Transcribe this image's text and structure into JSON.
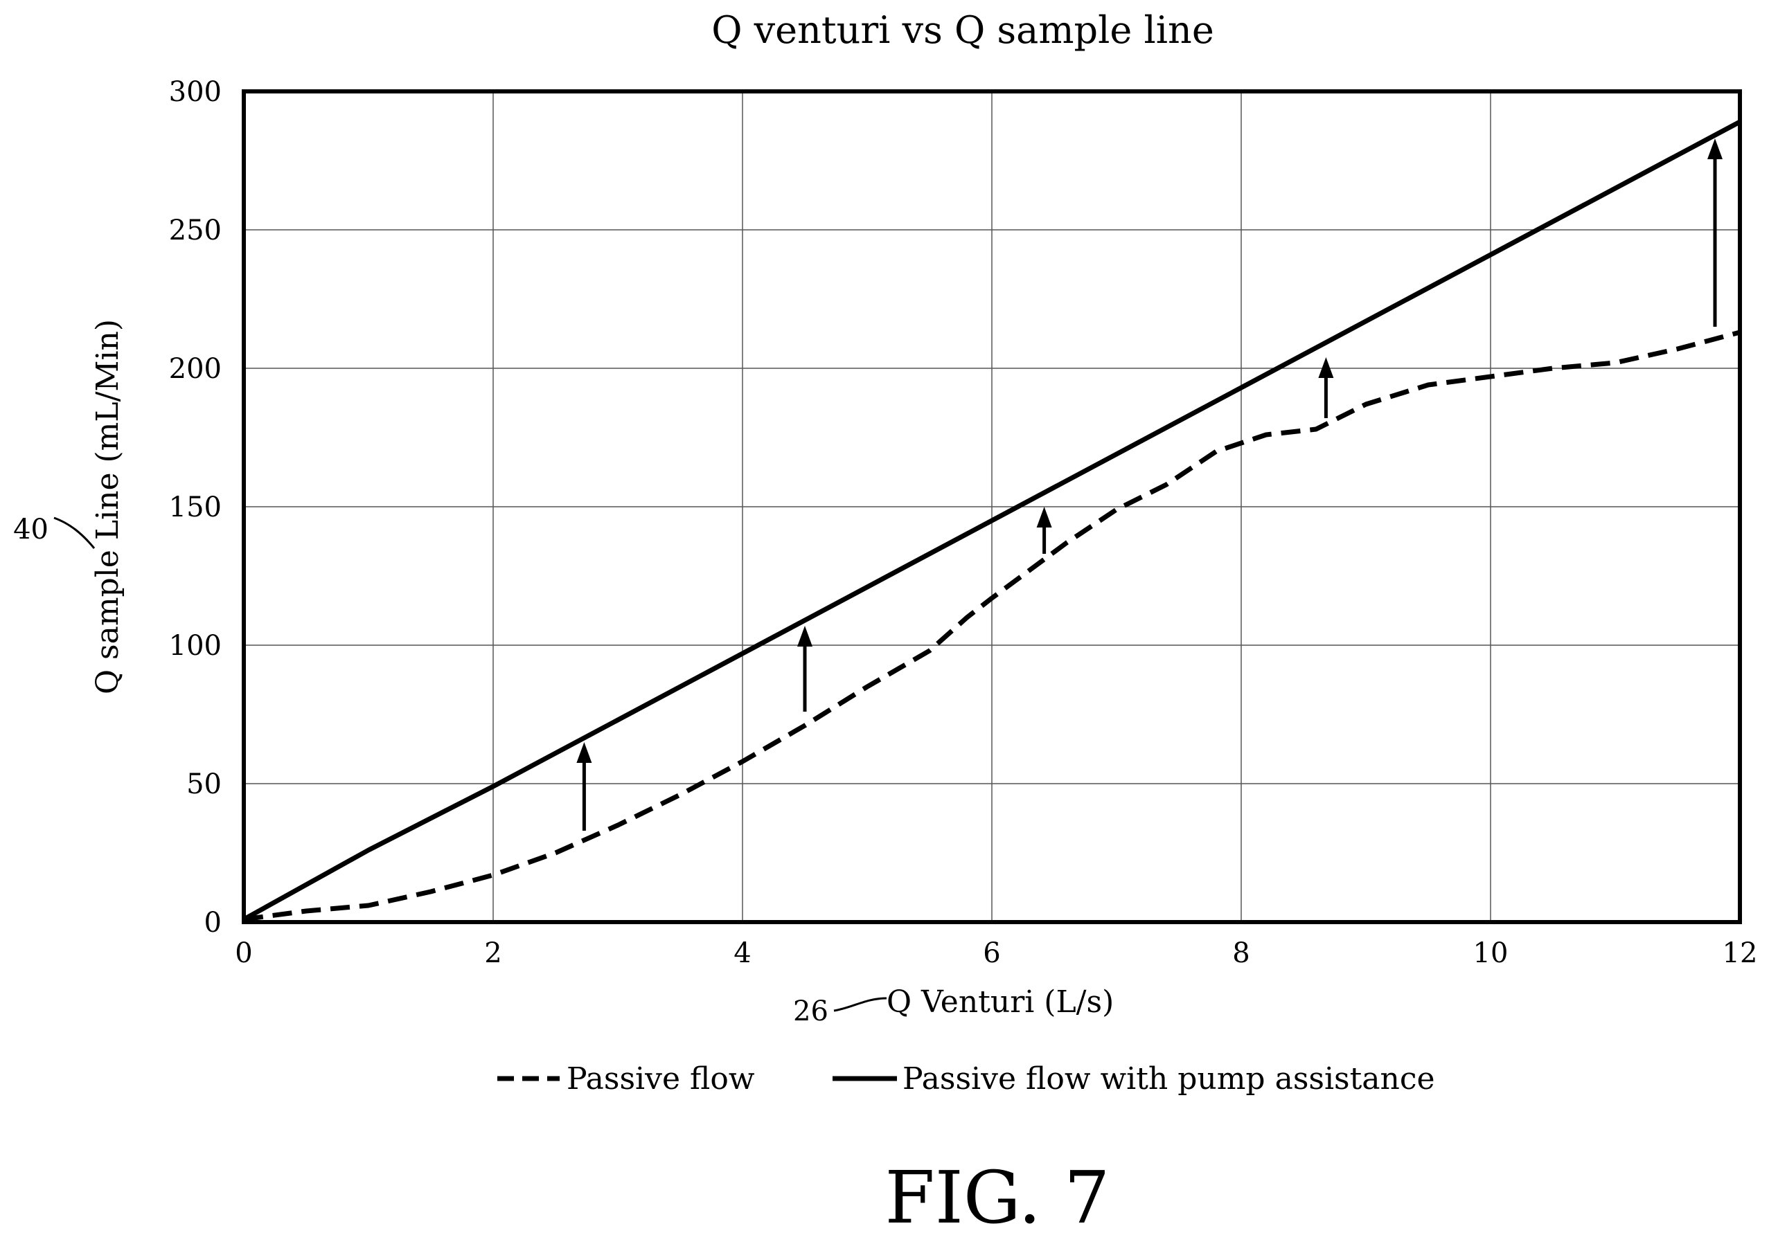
{
  "chart_data": {
    "type": "line",
    "title": "Q venturi vs Q sample line",
    "xlabel": "Q Venturi (L/s)",
    "ylabel": "Q sample Line (mL/Min)",
    "xlim": [
      0,
      12
    ],
    "ylim": [
      0,
      300
    ],
    "x_ticks": [
      "0",
      "2",
      "4",
      "6",
      "8",
      "10",
      "12"
    ],
    "y_ticks": [
      "0",
      "50",
      "100",
      "150",
      "200",
      "250",
      "300"
    ],
    "grid": true,
    "legend_position": "bottom",
    "series": [
      {
        "name": "Passive flow",
        "style": "dashed",
        "x": [
          0,
          0.5,
          1,
          1.5,
          2,
          2.5,
          3,
          3.5,
          4,
          4.5,
          5,
          5.5,
          5.8,
          6,
          6.3,
          6.6,
          7,
          7.4,
          7.8,
          8.2,
          8.6,
          9,
          9.5,
          10,
          10.5,
          11,
          11.5,
          12
        ],
        "y": [
          1,
          4,
          6,
          11,
          17,
          25,
          35,
          46,
          58,
          71,
          85,
          98,
          110,
          117,
          127,
          137,
          149,
          158,
          170,
          176,
          178,
          187,
          194,
          197,
          200,
          202,
          207,
          213
        ]
      },
      {
        "name": "Passive flow with pump assistance",
        "style": "solid",
        "x": [
          0,
          1,
          2,
          4,
          6,
          8,
          10,
          12
        ],
        "y": [
          1,
          26,
          49,
          97,
          145,
          193,
          241,
          289
        ]
      }
    ],
    "annotations": [
      {
        "type": "arrow",
        "x": 2.73,
        "y_from": 33,
        "y_to": 65
      },
      {
        "type": "arrow",
        "x": 4.5,
        "y_from": 76,
        "y_to": 107
      },
      {
        "type": "arrow",
        "x": 6.42,
        "y_from": 133,
        "y_to": 150
      },
      {
        "type": "arrow",
        "x": 8.68,
        "y_from": 182,
        "y_to": 204
      },
      {
        "type": "arrow",
        "x": 11.8,
        "y_from": 215,
        "y_to": 283
      }
    ]
  },
  "figure_label": "FIG. 7",
  "refs": {
    "y_axis_ref": "40",
    "x_axis_ref": "26"
  }
}
